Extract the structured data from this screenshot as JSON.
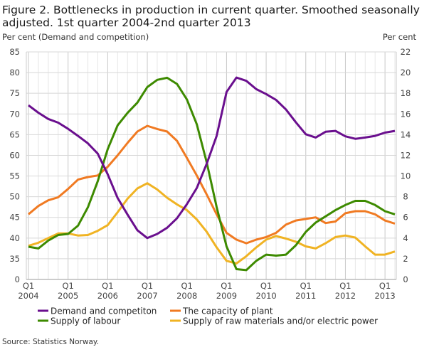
{
  "chart_data": {
    "type": "line",
    "title": "Figure 2. Bottlenecks in production in current quarter. Smoothed seasonally adjusted. 1st quarter 2004-2nd quarter 2013",
    "title_lines": [
      "Figure 2. Bottlenecks in production in current quarter. Smoothed seasonally",
      "adjusted. 1st quarter 2004-2nd quarter 2013"
    ],
    "ylabel_left": "Per cent (Demand and competition)",
    "ylabel_right": "Per cent",
    "y_left_ticks": [
      0,
      35,
      40,
      45,
      50,
      55,
      60,
      65,
      70,
      75,
      80,
      85
    ],
    "y_left_axis_break": [
      0,
      35
    ],
    "y_right_ticks": [
      0,
      2,
      4,
      6,
      8,
      10,
      12,
      14,
      16,
      18,
      20,
      22
    ],
    "ylim_right": [
      0,
      22
    ],
    "x_start": "2004Q1",
    "x_end": "2013Q2",
    "x_tick_labels": [
      {
        "q": "Q1",
        "year": "2004"
      },
      {
        "q": "Q1",
        "year": "2005"
      },
      {
        "q": "Q1",
        "year": "2006"
      },
      {
        "q": "Q1",
        "year": "2007"
      },
      {
        "q": "Q1",
        "year": "2008"
      },
      {
        "q": "Q1",
        "year": "2009"
      },
      {
        "q": "Q1",
        "year": "2010"
      },
      {
        "q": "Q1",
        "year": "2011"
      },
      {
        "q": "Q1",
        "year": "2012"
      },
      {
        "q": "Q1",
        "year": "2013"
      }
    ],
    "grid": true,
    "legend_position": "bottom",
    "series": [
      {
        "name": "Demand and competiton",
        "axis": "left",
        "color": "#6a0f8e",
        "values": [
          72.1,
          70.3,
          68.8,
          67.9,
          66.4,
          64.7,
          62.9,
          60.4,
          55.4,
          49.7,
          45.7,
          41.9,
          40.0,
          41.0,
          42.5,
          44.8,
          48.2,
          52.1,
          58.0,
          64.7,
          75.3,
          78.8,
          78.0,
          76.0,
          74.8,
          73.4,
          71.1,
          68.0,
          65.1,
          64.3,
          65.7,
          65.9,
          64.6,
          64.0,
          64.3,
          64.7,
          65.5,
          65.9
        ]
      },
      {
        "name": "The capacity of plant",
        "axis": "right",
        "color": "#f07a22",
        "values": [
          6.3,
          7.1,
          7.65,
          7.95,
          8.75,
          9.65,
          9.9,
          10.05,
          10.9,
          12.0,
          13.2,
          14.3,
          14.85,
          14.55,
          14.3,
          13.4,
          11.75,
          10.05,
          8.2,
          6.3,
          4.5,
          3.85,
          3.5,
          3.85,
          4.1,
          4.5,
          5.3,
          5.7,
          5.85,
          6.0,
          5.45,
          5.6,
          6.4,
          6.6,
          6.6,
          6.3,
          5.7,
          5.4
        ]
      },
      {
        "name": "Supply of labour",
        "axis": "right",
        "color": "#3d8a00",
        "values": [
          3.16,
          3.0,
          3.76,
          4.3,
          4.4,
          5.2,
          6.97,
          9.5,
          12.6,
          14.9,
          16.1,
          17.1,
          18.6,
          19.3,
          19.5,
          18.9,
          17.4,
          15.0,
          11.3,
          7.0,
          3.2,
          1.0,
          0.9,
          1.8,
          2.4,
          2.3,
          2.4,
          3.3,
          4.6,
          5.5,
          6.1,
          6.7,
          7.2,
          7.6,
          7.6,
          7.2,
          6.6,
          6.3
        ]
      },
      {
        "name": "Supply of raw materials and/or electric power",
        "axis": "right",
        "color": "#f0b323",
        "values": [
          3.25,
          3.55,
          4.0,
          4.45,
          4.45,
          4.25,
          4.3,
          4.7,
          5.25,
          6.5,
          7.8,
          8.8,
          9.3,
          8.7,
          7.9,
          7.25,
          6.7,
          5.8,
          4.6,
          3.1,
          1.8,
          1.55,
          2.25,
          3.1,
          3.85,
          4.2,
          3.95,
          3.65,
          3.2,
          3.0,
          3.5,
          4.1,
          4.25,
          4.05,
          3.2,
          2.4,
          2.4,
          2.7
        ]
      }
    ]
  },
  "source": "Source: Statistics Norway."
}
